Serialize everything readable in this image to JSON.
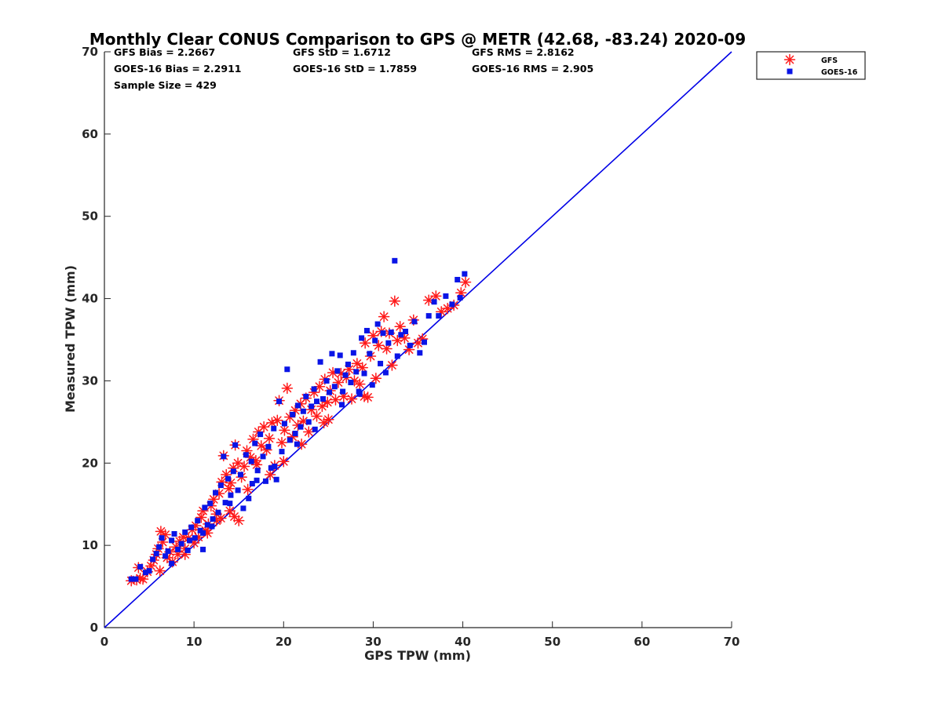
{
  "chart_data": {
    "type": "scatter",
    "title": "Monthly Clear CONUS Comparison to GPS @ METR (42.68, -83.24) 2020-09",
    "xlabel": "GPS TPW (mm)",
    "ylabel": "Measured TPW (mm)",
    "xlim": [
      0,
      70
    ],
    "ylim": [
      0,
      70
    ],
    "x_ticks": [
      0,
      10,
      20,
      30,
      40,
      50,
      60,
      70
    ],
    "y_ticks": [
      0,
      10,
      20,
      30,
      40,
      50,
      60,
      70
    ],
    "grid": false,
    "legend_position": "outside-top-right",
    "reference_line": {
      "x": [
        0,
        70
      ],
      "y": [
        0,
        70
      ],
      "color": "#0000e6"
    },
    "stats": [
      [
        "GFS Bias = 2.2667",
        "GFS StD = 1.6712",
        "GFS RMS = 2.8162"
      ],
      [
        "GOES-16 Bias = 2.2911",
        "GOES-16 StD = 1.7859",
        "GOES-16 RMS = 2.905"
      ],
      [
        "Sample Size = 429",
        "",
        ""
      ]
    ],
    "series": [
      {
        "name": "GFS",
        "marker": "asterisk",
        "color": "#ff1a1a",
        "points": [
          [
            3.0,
            5.7
          ],
          [
            3.6,
            5.8
          ],
          [
            4.0,
            6.0
          ],
          [
            4.3,
            5.9
          ],
          [
            3.8,
            7.3
          ],
          [
            4.8,
            6.8
          ],
          [
            5.2,
            7.5
          ],
          [
            5.5,
            8.2
          ],
          [
            5.8,
            8.9
          ],
          [
            6.0,
            9.6
          ],
          [
            6.3,
            11.7
          ],
          [
            6.5,
            10.4
          ],
          [
            6.8,
            11.3
          ],
          [
            7.0,
            8.5
          ],
          [
            7.3,
            9.2
          ],
          [
            7.6,
            8.0
          ],
          [
            8.0,
            9.8
          ],
          [
            8.4,
            10.5
          ],
          [
            8.8,
            11.0
          ],
          [
            9.0,
            9.6
          ],
          [
            9.4,
            10.9
          ],
          [
            9.8,
            11.9
          ],
          [
            10.2,
            12.4
          ],
          [
            10.5,
            11.0
          ],
          [
            10.8,
            13.4
          ],
          [
            11.0,
            14.2
          ],
          [
            11.3,
            11.8
          ],
          [
            11.6,
            12.6
          ],
          [
            11.9,
            14.8
          ],
          [
            12.2,
            15.6
          ],
          [
            12.5,
            13.0
          ],
          [
            12.8,
            16.3
          ],
          [
            13.1,
            17.7
          ],
          [
            13.3,
            20.9
          ],
          [
            13.6,
            18.6
          ],
          [
            13.9,
            16.9
          ],
          [
            14.1,
            17.6
          ],
          [
            14.4,
            19.4
          ],
          [
            14.6,
            22.2
          ],
          [
            14.9,
            20.0
          ],
          [
            15.0,
            13.0
          ],
          [
            14.5,
            13.5
          ],
          [
            15.3,
            18.3
          ],
          [
            15.6,
            19.6
          ],
          [
            15.9,
            21.5
          ],
          [
            16.3,
            20.7
          ],
          [
            16.6,
            22.9
          ],
          [
            16.9,
            20.3
          ],
          [
            17.2,
            23.8
          ],
          [
            17.5,
            22.1
          ],
          [
            17.8,
            24.4
          ],
          [
            18.1,
            21.6
          ],
          [
            18.4,
            23.0
          ],
          [
            18.7,
            24.9
          ],
          [
            19.0,
            19.7
          ],
          [
            19.3,
            25.2
          ],
          [
            19.5,
            27.6
          ],
          [
            19.8,
            22.5
          ],
          [
            20.1,
            24.0
          ],
          [
            20.4,
            29.1
          ],
          [
            20.7,
            25.6
          ],
          [
            21.0,
            23.2
          ],
          [
            21.3,
            26.4
          ],
          [
            21.6,
            24.6
          ],
          [
            21.9,
            27.2
          ],
          [
            22.2,
            25.1
          ],
          [
            22.5,
            27.9
          ],
          [
            22.8,
            23.8
          ],
          [
            23.1,
            26.5
          ],
          [
            23.4,
            28.6
          ],
          [
            23.7,
            25.7
          ],
          [
            24.0,
            29.3
          ],
          [
            24.3,
            26.9
          ],
          [
            24.6,
            30.2
          ],
          [
            24.9,
            27.4
          ],
          [
            25.2,
            28.8
          ],
          [
            25.5,
            31.0
          ],
          [
            25.8,
            27.7
          ],
          [
            26.1,
            29.8
          ],
          [
            26.4,
            30.9
          ],
          [
            26.7,
            28.1
          ],
          [
            27.0,
            30.4
          ],
          [
            27.3,
            31.4
          ],
          [
            27.6,
            27.8
          ],
          [
            27.9,
            30.0
          ],
          [
            28.2,
            32.1
          ],
          [
            28.5,
            29.6
          ],
          [
            28.8,
            31.6
          ],
          [
            29.1,
            34.6
          ],
          [
            29.4,
            28.0
          ],
          [
            29.7,
            33.0
          ],
          [
            30.0,
            35.5
          ],
          [
            30.3,
            30.3
          ],
          [
            30.6,
            34.3
          ],
          [
            30.9,
            36.0
          ],
          [
            31.2,
            37.8
          ],
          [
            31.5,
            33.9
          ],
          [
            31.8,
            35.8
          ],
          [
            32.1,
            31.9
          ],
          [
            32.4,
            39.7
          ],
          [
            32.7,
            34.9
          ],
          [
            33.0,
            36.6
          ],
          [
            33.5,
            35.2
          ],
          [
            34.0,
            33.8
          ],
          [
            34.5,
            37.4
          ],
          [
            35.0,
            34.6
          ],
          [
            35.5,
            35.1
          ],
          [
            36.2,
            39.8
          ],
          [
            37.0,
            40.3
          ],
          [
            37.6,
            38.4
          ],
          [
            38.3,
            38.8
          ],
          [
            39.0,
            39.2
          ],
          [
            39.8,
            40.7
          ],
          [
            40.3,
            42.0
          ],
          [
            11.5,
            11.5
          ],
          [
            12.5,
            13.8
          ],
          [
            10.0,
            10.3
          ],
          [
            8.2,
            8.9
          ],
          [
            17.0,
            19.8
          ],
          [
            22.0,
            22.3
          ],
          [
            18.5,
            18.6
          ],
          [
            25.0,
            25.3
          ],
          [
            29.0,
            28.1
          ],
          [
            14.0,
            14.2
          ],
          [
            6.2,
            6.9
          ],
          [
            20.0,
            20.2
          ],
          [
            16.0,
            16.8
          ],
          [
            13.0,
            13.3
          ],
          [
            24.5,
            24.9
          ],
          [
            9.0,
            8.9
          ]
        ]
      },
      {
        "name": "GOES-16",
        "marker": "square",
        "color": "#0a14e6",
        "points": [
          [
            3.0,
            5.9
          ],
          [
            3.5,
            5.9
          ],
          [
            4.0,
            7.4
          ],
          [
            4.6,
            6.7
          ],
          [
            5.0,
            6.9
          ],
          [
            5.4,
            8.3
          ],
          [
            5.8,
            9.0
          ],
          [
            6.1,
            9.8
          ],
          [
            6.4,
            10.9
          ],
          [
            6.8,
            8.7
          ],
          [
            7.1,
            9.3
          ],
          [
            7.5,
            10.6
          ],
          [
            7.8,
            11.4
          ],
          [
            8.2,
            9.5
          ],
          [
            8.6,
            10.2
          ],
          [
            9.0,
            11.6
          ],
          [
            9.3,
            9.4
          ],
          [
            9.7,
            12.2
          ],
          [
            10.1,
            10.9
          ],
          [
            10.4,
            13.0
          ],
          [
            10.7,
            11.8
          ],
          [
            11.0,
            9.5
          ],
          [
            11.2,
            14.6
          ],
          [
            11.5,
            12.5
          ],
          [
            11.8,
            15.1
          ],
          [
            12.1,
            13.2
          ],
          [
            12.4,
            16.4
          ],
          [
            12.7,
            14.0
          ],
          [
            13.0,
            17.3
          ],
          [
            13.3,
            20.8
          ],
          [
            13.5,
            15.2
          ],
          [
            13.8,
            18.1
          ],
          [
            14.1,
            16.1
          ],
          [
            14.4,
            19.0
          ],
          [
            14.6,
            22.2
          ],
          [
            14.9,
            16.7
          ],
          [
            15.2,
            18.6
          ],
          [
            15.5,
            14.5
          ],
          [
            15.8,
            21.0
          ],
          [
            16.1,
            15.7
          ],
          [
            16.4,
            20.2
          ],
          [
            16.8,
            22.4
          ],
          [
            17.1,
            19.1
          ],
          [
            17.4,
            23.5
          ],
          [
            17.7,
            20.8
          ],
          [
            18.0,
            17.8
          ],
          [
            18.3,
            22.0
          ],
          [
            18.6,
            19.4
          ],
          [
            18.9,
            24.2
          ],
          [
            19.2,
            18.0
          ],
          [
            19.5,
            27.5
          ],
          [
            19.8,
            21.4
          ],
          [
            20.1,
            24.8
          ],
          [
            20.4,
            31.4
          ],
          [
            20.7,
            22.8
          ],
          [
            21.0,
            25.9
          ],
          [
            21.3,
            23.6
          ],
          [
            21.6,
            27.0
          ],
          [
            21.9,
            24.4
          ],
          [
            22.2,
            26.3
          ],
          [
            22.5,
            28.1
          ],
          [
            22.8,
            25.0
          ],
          [
            23.1,
            26.9
          ],
          [
            23.4,
            29.0
          ],
          [
            23.7,
            27.5
          ],
          [
            24.1,
            32.3
          ],
          [
            24.4,
            27.8
          ],
          [
            24.8,
            30.0
          ],
          [
            25.1,
            28.6
          ],
          [
            25.4,
            33.3
          ],
          [
            25.7,
            29.3
          ],
          [
            26.0,
            31.2
          ],
          [
            26.3,
            33.1
          ],
          [
            26.6,
            28.7
          ],
          [
            26.9,
            30.7
          ],
          [
            27.2,
            32.0
          ],
          [
            27.5,
            29.8
          ],
          [
            27.8,
            33.4
          ],
          [
            28.1,
            31.1
          ],
          [
            28.4,
            28.7
          ],
          [
            28.7,
            35.2
          ],
          [
            29.0,
            30.9
          ],
          [
            29.3,
            36.1
          ],
          [
            29.6,
            33.3
          ],
          [
            29.9,
            29.5
          ],
          [
            30.2,
            34.9
          ],
          [
            30.5,
            36.9
          ],
          [
            30.8,
            32.1
          ],
          [
            31.1,
            35.8
          ],
          [
            31.4,
            31.0
          ],
          [
            31.7,
            34.6
          ],
          [
            32.0,
            35.9
          ],
          [
            32.4,
            44.6
          ],
          [
            32.7,
            33.0
          ],
          [
            33.1,
            35.6
          ],
          [
            33.6,
            36.0
          ],
          [
            34.1,
            34.3
          ],
          [
            34.6,
            37.2
          ],
          [
            35.2,
            33.4
          ],
          [
            35.7,
            34.7
          ],
          [
            36.2,
            37.9
          ],
          [
            36.8,
            39.6
          ],
          [
            37.3,
            37.9
          ],
          [
            38.1,
            40.3
          ],
          [
            38.8,
            39.3
          ],
          [
            39.4,
            42.3
          ],
          [
            39.7,
            40.1
          ],
          [
            40.2,
            43.0
          ],
          [
            12.0,
            12.3
          ],
          [
            9.5,
            10.6
          ],
          [
            16.5,
            17.5
          ],
          [
            21.5,
            22.3
          ],
          [
            26.5,
            27.1
          ],
          [
            28.5,
            28.4
          ],
          [
            7.5,
            7.8
          ],
          [
            14.0,
            15.1
          ],
          [
            19.0,
            19.6
          ],
          [
            23.5,
            24.1
          ],
          [
            11.0,
            11.5
          ],
          [
            17.0,
            17.9
          ]
        ]
      }
    ]
  }
}
